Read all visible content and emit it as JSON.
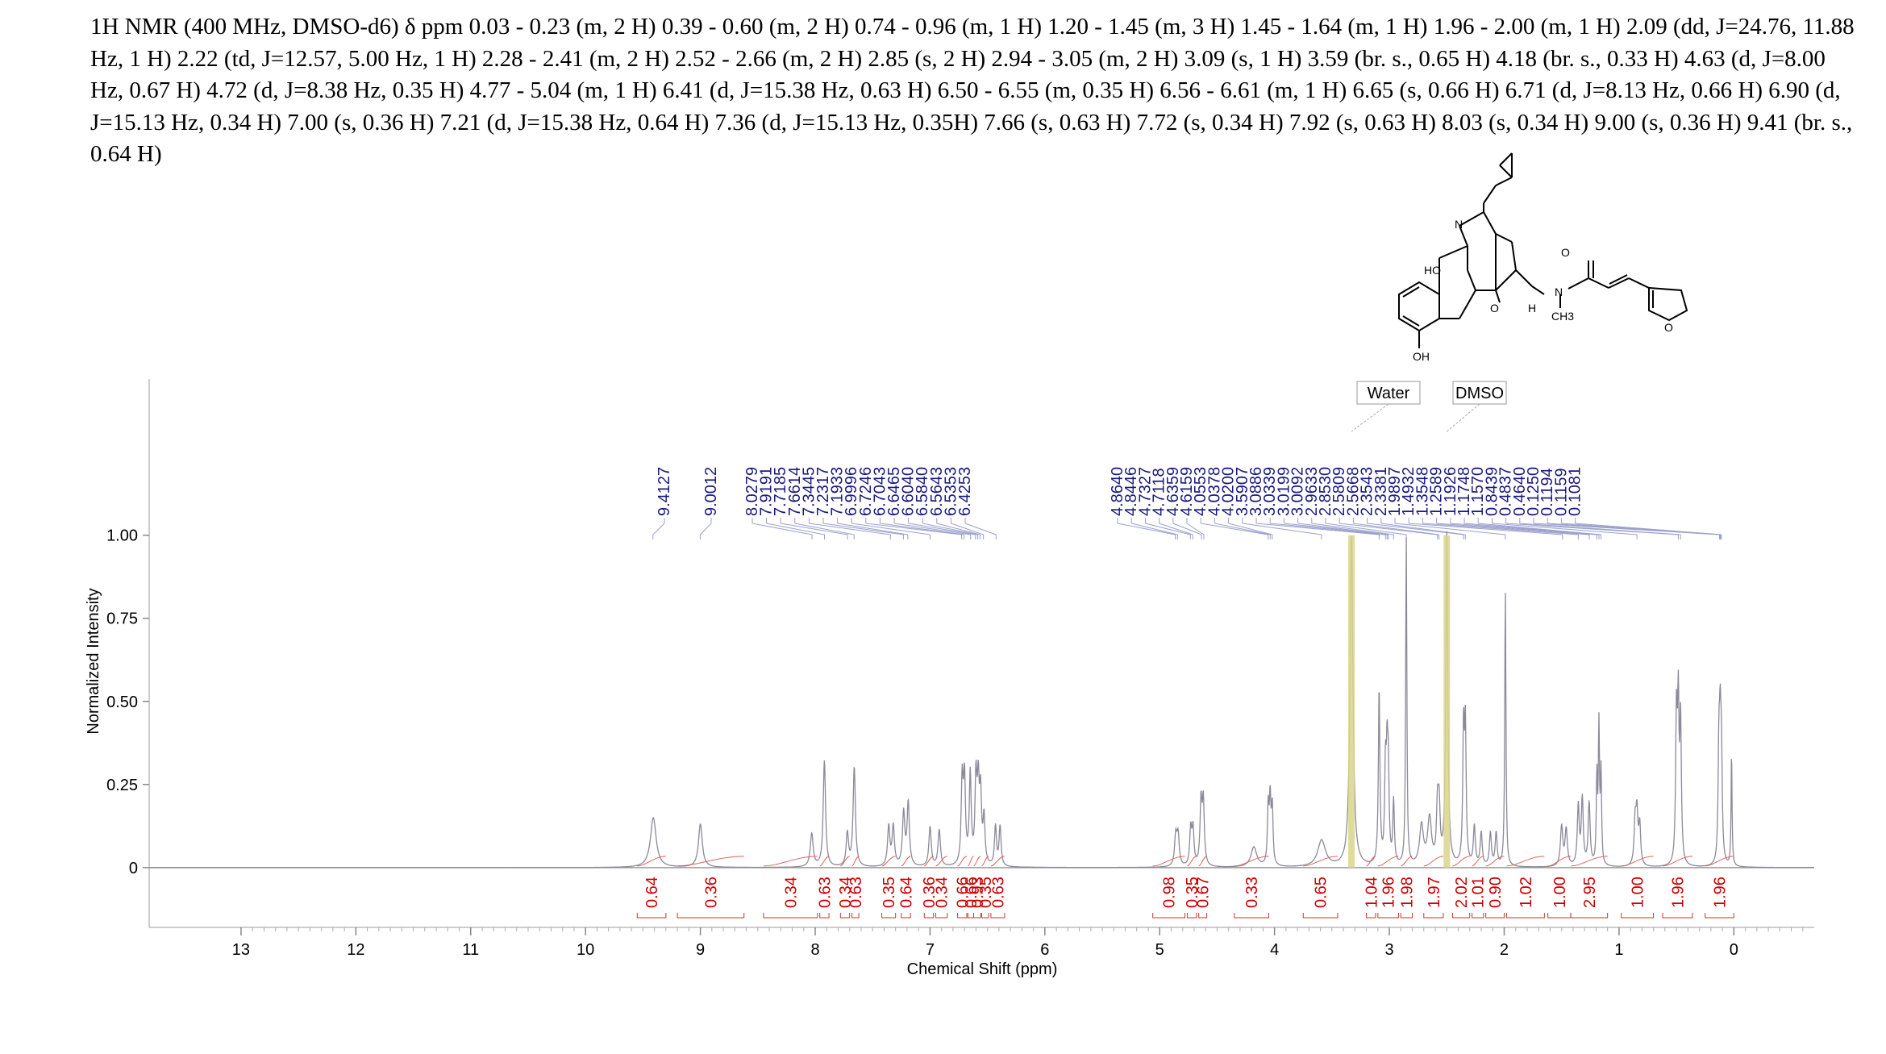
{
  "header": {
    "text": "1H NMR (400 MHz, DMSO-d6) δ ppm 0.03 - 0.23 (m, 2 H) 0.39 - 0.60 (m, 2 H) 0.74 - 0.96 (m, 1 H) 1.20 - 1.45 (m, 3 H) 1.45 - 1.64 (m, 1 H) 1.96 - 2.00 (m, 1 H) 2.09 (dd, J=24.76, 11.88 Hz, 1 H) 2.22 (td, J=12.57, 5.00 Hz, 1 H) 2.28 - 2.41 (m, 2 H) 2.52 - 2.66 (m, 2 H) 2.85 (s, 2 H) 2.94 - 3.05 (m, 2 H) 3.09 (s, 1 H) 3.59 (br. s., 0.65 H) 4.18 (br. s., 0.33 H) 4.63 (d, J=8.00 Hz, 0.67 H) 4.72 (d, J=8.38 Hz, 0.35 H) 4.77 - 5.04 (m, 1 H) 6.41 (d, J=15.38 Hz, 0.63 H) 6.50 - 6.55 (m, 0.35 H) 6.56 - 6.61 (m, 1 H) 6.65 (s, 0.66 H) 6.71 (d, J=8.13 Hz, 0.66 H) 6.90 (d, J=15.13 Hz, 0.34 H) 7.00 (s, 0.36 H) 7.21 (d, J=15.38 Hz, 0.64 H) 7.36 (d, J=15.13 Hz, 0.35H) 7.66 (s, 0.63 H) 7.72 (s, 0.34 H) 7.92 (s, 0.63 H) 8.03 (s, 0.34 H) 9.00 (s, 0.36 H) 9.41 (br. s., 0.64 H)"
  },
  "structure_labels": {
    "n_top": "N",
    "ho": "HO",
    "o_carbonyl": "O",
    "n_amide": "N",
    "h": "H",
    "ch3": "CH3",
    "o_ring": "O",
    "o_furan": "O",
    "oh": "OH"
  },
  "chart_data": {
    "type": "line",
    "xlabel": "Chemical Shift (ppm)",
    "ylabel": "Normalized Intensity",
    "xlim": [
      13.8,
      -0.7
    ],
    "ylim": [
      -0.18,
      1.47
    ],
    "x_ticks": [
      13,
      12,
      11,
      10,
      9,
      8,
      7,
      6,
      5,
      4,
      3,
      2,
      1,
      0
    ],
    "y_ticks": [
      {
        "value": 0,
        "label": "0"
      },
      {
        "value": 0.25,
        "label": "0.25"
      },
      {
        "value": 0.5,
        "label": "0.50"
      },
      {
        "value": 0.75,
        "label": "0.75"
      },
      {
        "value": 1.0,
        "label": "1.00"
      }
    ],
    "solvent_labels": [
      {
        "text": "Water",
        "x": 3.33
      },
      {
        "text": "DMSO",
        "x": 2.5
      }
    ],
    "peak_labels": [
      "9.4127",
      "9.0012",
      "8.0279",
      "7.9191",
      "7.7185",
      "7.6614",
      "7.3445",
      "7.2317",
      "7.1933",
      "6.9996",
      "6.7246",
      "6.7043",
      "6.6465",
      "6.6040",
      "6.5840",
      "6.5643",
      "6.5353",
      "6.4253",
      "4.8640",
      "4.8446",
      "4.7327",
      "4.7118",
      "4.6359",
      "4.6159",
      "4.0553",
      "4.0378",
      "4.0200",
      "3.5907",
      "3.0886",
      "3.0339",
      "3.0199",
      "3.0092",
      "2.9633",
      "2.8530",
      "2.5809",
      "2.5668",
      "2.3543",
      "2.3381",
      "1.9897",
      "1.4932",
      "1.3548",
      "1.2589",
      "1.1926",
      "1.1748",
      "1.1570",
      "0.8439",
      "0.4837",
      "0.4640",
      "0.1250",
      "0.1194",
      "0.1159",
      "0.1081"
    ],
    "peaks": [
      {
        "x": 9.41,
        "y": 0.15,
        "w": 0.03
      },
      {
        "x": 9.0,
        "y": 0.13,
        "w": 0.02
      },
      {
        "x": 8.03,
        "y": 0.1,
        "w": 0.015
      },
      {
        "x": 7.92,
        "y": 0.32,
        "w": 0.012
      },
      {
        "x": 7.72,
        "y": 0.1,
        "w": 0.012
      },
      {
        "x": 7.66,
        "y": 0.3,
        "w": 0.012
      },
      {
        "x": 7.36,
        "y": 0.12,
        "w": 0.012
      },
      {
        "x": 7.32,
        "y": 0.12,
        "w": 0.012
      },
      {
        "x": 7.23,
        "y": 0.16,
        "w": 0.012
      },
      {
        "x": 7.19,
        "y": 0.19,
        "w": 0.012
      },
      {
        "x": 7.0,
        "y": 0.12,
        "w": 0.012
      },
      {
        "x": 6.92,
        "y": 0.11,
        "w": 0.012
      },
      {
        "x": 6.72,
        "y": 0.25,
        "w": 0.01
      },
      {
        "x": 6.7,
        "y": 0.25,
        "w": 0.01
      },
      {
        "x": 6.65,
        "y": 0.27,
        "w": 0.01
      },
      {
        "x": 6.6,
        "y": 0.25,
        "w": 0.01
      },
      {
        "x": 6.58,
        "y": 0.22,
        "w": 0.01
      },
      {
        "x": 6.56,
        "y": 0.2,
        "w": 0.01
      },
      {
        "x": 6.53,
        "y": 0.14,
        "w": 0.01
      },
      {
        "x": 6.43,
        "y": 0.12,
        "w": 0.01
      },
      {
        "x": 6.39,
        "y": 0.12,
        "w": 0.01
      },
      {
        "x": 4.86,
        "y": 0.09,
        "w": 0.012
      },
      {
        "x": 4.84,
        "y": 0.09,
        "w": 0.012
      },
      {
        "x": 4.73,
        "y": 0.11,
        "w": 0.01
      },
      {
        "x": 4.71,
        "y": 0.11,
        "w": 0.01
      },
      {
        "x": 4.64,
        "y": 0.19,
        "w": 0.01
      },
      {
        "x": 4.62,
        "y": 0.19,
        "w": 0.01
      },
      {
        "x": 4.18,
        "y": 0.06,
        "w": 0.03
      },
      {
        "x": 4.055,
        "y": 0.17,
        "w": 0.008
      },
      {
        "x": 4.038,
        "y": 0.19,
        "w": 0.008
      },
      {
        "x": 4.02,
        "y": 0.17,
        "w": 0.008
      },
      {
        "x": 3.59,
        "y": 0.08,
        "w": 0.04
      },
      {
        "x": 3.33,
        "y": 1.0,
        "w": 0.015
      },
      {
        "x": 3.089,
        "y": 0.53,
        "w": 0.008
      },
      {
        "x": 3.034,
        "y": 0.27,
        "w": 0.008
      },
      {
        "x": 3.02,
        "y": 0.28,
        "w": 0.008
      },
      {
        "x": 3.009,
        "y": 0.25,
        "w": 0.008
      },
      {
        "x": 2.963,
        "y": 0.19,
        "w": 0.008
      },
      {
        "x": 2.853,
        "y": 0.99,
        "w": 0.006
      },
      {
        "x": 2.72,
        "y": 0.12,
        "w": 0.02
      },
      {
        "x": 2.65,
        "y": 0.14,
        "w": 0.02
      },
      {
        "x": 2.581,
        "y": 0.16,
        "w": 0.01
      },
      {
        "x": 2.567,
        "y": 0.16,
        "w": 0.01
      },
      {
        "x": 2.5,
        "y": 1.0,
        "w": 0.01
      },
      {
        "x": 2.354,
        "y": 0.4,
        "w": 0.008
      },
      {
        "x": 2.338,
        "y": 0.4,
        "w": 0.008
      },
      {
        "x": 2.26,
        "y": 0.12,
        "w": 0.01
      },
      {
        "x": 2.2,
        "y": 0.1,
        "w": 0.01
      },
      {
        "x": 2.12,
        "y": 0.1,
        "w": 0.01
      },
      {
        "x": 2.07,
        "y": 0.1,
        "w": 0.01
      },
      {
        "x": 1.99,
        "y": 0.83,
        "w": 0.006
      },
      {
        "x": 1.5,
        "y": 0.12,
        "w": 0.012
      },
      {
        "x": 1.46,
        "y": 0.11,
        "w": 0.012
      },
      {
        "x": 1.355,
        "y": 0.18,
        "w": 0.01
      },
      {
        "x": 1.32,
        "y": 0.2,
        "w": 0.01
      },
      {
        "x": 1.26,
        "y": 0.19,
        "w": 0.01
      },
      {
        "x": 1.193,
        "y": 0.26,
        "w": 0.006
      },
      {
        "x": 1.175,
        "y": 0.41,
        "w": 0.006
      },
      {
        "x": 1.157,
        "y": 0.27,
        "w": 0.006
      },
      {
        "x": 0.86,
        "y": 0.13,
        "w": 0.01
      },
      {
        "x": 0.844,
        "y": 0.15,
        "w": 0.01
      },
      {
        "x": 0.82,
        "y": 0.12,
        "w": 0.01
      },
      {
        "x": 0.5,
        "y": 0.43,
        "w": 0.008
      },
      {
        "x": 0.484,
        "y": 0.45,
        "w": 0.008
      },
      {
        "x": 0.464,
        "y": 0.42,
        "w": 0.008
      },
      {
        "x": 0.13,
        "y": 0.32,
        "w": 0.008
      },
      {
        "x": 0.119,
        "y": 0.34,
        "w": 0.008
      },
      {
        "x": 0.108,
        "y": 0.3,
        "w": 0.008
      },
      {
        "x": 0.02,
        "y": 0.35,
        "w": 0.005
      }
    ],
    "integrals": [
      {
        "label": "0.64",
        "from": 9.55,
        "to": 9.3
      },
      {
        "label": "0.36",
        "from": 9.2,
        "to": 8.62
      },
      {
        "label": "0.34",
        "from": 8.45,
        "to": 7.98
      },
      {
        "label": "0.63",
        "from": 7.96,
        "to": 7.88
      },
      {
        "label": "0.34",
        "from": 7.78,
        "to": 7.7
      },
      {
        "label": "0.63",
        "from": 7.68,
        "to": 7.62
      },
      {
        "label": "0.35",
        "from": 7.42,
        "to": 7.3
      },
      {
        "label": "0.64",
        "from": 7.25,
        "to": 7.17
      },
      {
        "label": "0.36",
        "from": 7.05,
        "to": 6.97
      },
      {
        "label": "0.34",
        "from": 6.95,
        "to": 6.85
      },
      {
        "label": "0.66",
        "from": 6.76,
        "to": 6.68
      },
      {
        "label": "0.66",
        "from": 6.67,
        "to": 6.62
      },
      {
        "label": "0.93",
        "from": 6.62,
        "to": 6.56
      },
      {
        "label": "0.35",
        "from": 6.55,
        "to": 6.49
      },
      {
        "label": "0.63",
        "from": 6.47,
        "to": 6.35
      },
      {
        "label": "0.98",
        "from": 5.06,
        "to": 4.78
      },
      {
        "label": "0.35",
        "from": 4.76,
        "to": 4.68
      },
      {
        "label": "0.67",
        "from": 4.66,
        "to": 4.59
      },
      {
        "label": "0.33",
        "from": 4.35,
        "to": 4.05
      },
      {
        "label": "0.65",
        "from": 3.75,
        "to": 3.45
      },
      {
        "label": "1.04",
        "from": 3.2,
        "to": 3.12
      },
      {
        "label": "1.96",
        "from": 3.1,
        "to": 2.92
      },
      {
        "label": "1.98",
        "from": 2.9,
        "to": 2.8
      },
      {
        "label": "1.97",
        "from": 2.7,
        "to": 2.53
      },
      {
        "label": "2.02",
        "from": 2.45,
        "to": 2.3
      },
      {
        "label": "1.01",
        "from": 2.28,
        "to": 2.18
      },
      {
        "label": "0.90",
        "from": 2.16,
        "to": 2.0
      },
      {
        "label": "1.02",
        "from": 1.98,
        "to": 1.65
      },
      {
        "label": "1.00",
        "from": 1.62,
        "to": 1.42
      },
      {
        "label": "2.95",
        "from": 1.42,
        "to": 1.1
      },
      {
        "label": "1.00",
        "from": 0.98,
        "to": 0.7
      },
      {
        "label": "1.96",
        "from": 0.62,
        "to": 0.36
      },
      {
        "label": "1.96",
        "from": 0.25,
        "to": 0.0
      }
    ]
  }
}
